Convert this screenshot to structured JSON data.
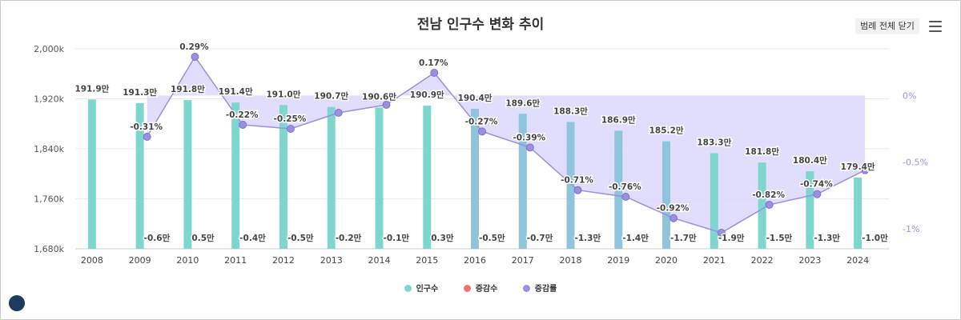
{
  "chart_data": {
    "type": "bar+line",
    "title": "전남 인구수 변화 추이",
    "categories": [
      "2008",
      "2009",
      "2010",
      "2011",
      "2012",
      "2013",
      "2014",
      "2015",
      "2016",
      "2017",
      "2018",
      "2019",
      "2020",
      "2021",
      "2022",
      "2023",
      "2024"
    ],
    "population": [
      1919,
      1913,
      1918,
      1914,
      1910,
      1907,
      1906,
      1909,
      1904,
      1896,
      1883,
      1869,
      1852,
      1833,
      1818,
      1804,
      1794
    ],
    "population_labels": [
      "191.9만",
      "191.3만",
      "191.8만",
      "191.4만",
      "191.0만",
      "190.7만",
      "190.6만",
      "190.9만",
      "190.4만",
      "189.6만",
      "188.3만",
      "186.9만",
      "185.2만",
      "183.3만",
      "181.8만",
      "180.4만",
      "179.4만"
    ],
    "change_labels": [
      "",
      "-0.6만",
      "0.5만",
      "-0.4만",
      "-0.5만",
      "-0.2만",
      "-0.1만",
      "0.3만",
      "-0.5만",
      "-0.7만",
      "-1.3만",
      "-1.4만",
      "-1.7만",
      "-1.9만",
      "-1.5만",
      "-1.3만",
      "-1.0만"
    ],
    "rate": [
      null,
      -0.31,
      0.29,
      -0.22,
      -0.25,
      -0.13,
      -0.07,
      0.17,
      -0.27,
      -0.39,
      -0.71,
      -0.76,
      -0.92,
      -1.03,
      -0.82,
      -0.74,
      -0.56
    ],
    "rate_labels": [
      "",
      "-0.31%",
      "0.29%",
      "-0.22%",
      "-0.25%",
      "",
      "",
      "0.17%",
      "-0.27%",
      "-0.39%",
      "-0.71%",
      "-0.76%",
      "-0.92%",
      "",
      "-0.82%",
      "-0.74%",
      ""
    ],
    "y_left": {
      "min": 1680,
      "max": 2000,
      "ticks": [
        1680,
        1760,
        1840,
        1920,
        2000
      ],
      "tick_labels": [
        "1,680k",
        "1,760k",
        "1,840k",
        "1,920k",
        "2,000k"
      ]
    },
    "y_right": {
      "min": -1.15,
      "max": 0.35,
      "ticks": [
        0,
        -0.5,
        -1
      ],
      "tick_labels": [
        "0%",
        "-0.5%",
        "-1%"
      ]
    },
    "legend": [
      "인구수",
      "증감수",
      "증감률"
    ],
    "colors": {
      "bar": "#7fd6cf",
      "bar_alt": "#8ec5dd",
      "change": "#f07070",
      "rate_line": "#9b8fe0",
      "rate_fill": "#dcd7fb",
      "right_axis": "#9b8fe0"
    }
  },
  "ui": {
    "legend_close_label": "범례 전체 닫기",
    "menu_icon": "hamburger-menu-icon",
    "logo_icon": "home-logo-icon"
  }
}
